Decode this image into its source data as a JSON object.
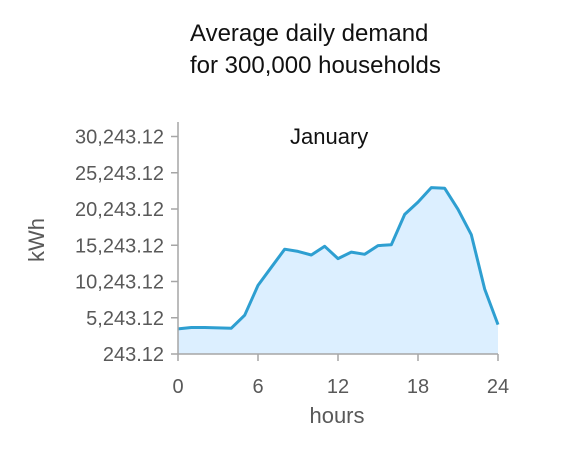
{
  "chart_data": {
    "type": "area",
    "title_lines": [
      "Average daily demand",
      "for 300,000 households"
    ],
    "annotation": "January",
    "xlabel": "hours",
    "ylabel": "kWh",
    "xlim": [
      0,
      24
    ],
    "ylim": [
      243.12,
      32243.12
    ],
    "x_ticks": [
      0,
      6,
      12,
      18,
      24
    ],
    "x_tick_labels": [
      "0",
      "6",
      "12",
      "18",
      "24"
    ],
    "y_ticks": [
      243.12,
      5243.12,
      10243.12,
      15243.12,
      20243.12,
      25243.12,
      30243.12
    ],
    "y_tick_labels": [
      "243.12",
      "5,243.12",
      "10,243.12",
      "15,243.12",
      "20,243.12",
      "25,243.12",
      "30,243.12"
    ],
    "grid": false,
    "series": [
      {
        "x": [
          0,
          1,
          2,
          3,
          4,
          5,
          6,
          7,
          8,
          9,
          10,
          11,
          12,
          13,
          14,
          15,
          16,
          17,
          18,
          19,
          20,
          21,
          22,
          23,
          24
        ],
        "values": [
          3700,
          3900,
          3900,
          3850,
          3800,
          5600,
          9700,
          12200,
          14700,
          14400,
          13900,
          15100,
          13400,
          14300,
          14000,
          15200,
          15300,
          19500,
          21200,
          23200,
          23100,
          20200,
          16700,
          9200,
          4300
        ]
      }
    ],
    "colors": {
      "line": "#2e9fd1",
      "fill": "#dcefff",
      "axis": "#a6a6a6"
    }
  }
}
